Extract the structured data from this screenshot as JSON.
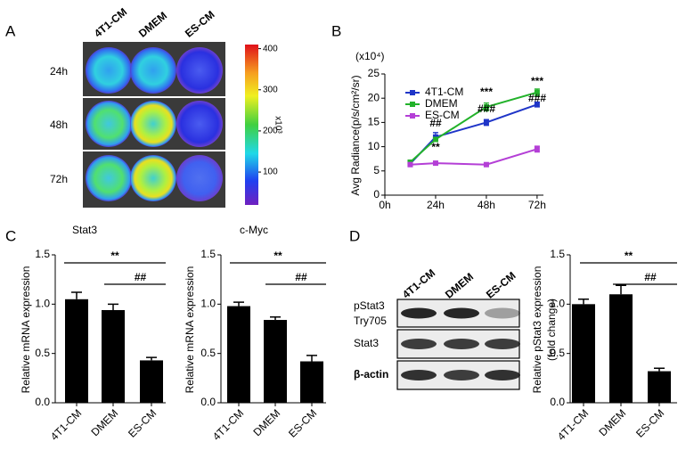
{
  "panel_labels": [
    "A",
    "B",
    "C",
    "D"
  ],
  "imaging": {
    "columns": [
      "4T1-CM",
      "DMEM",
      "ES-CM"
    ],
    "rows": [
      "24h",
      "48h",
      "72h"
    ],
    "colorbar": {
      "label": "x10³",
      "lim": [
        20,
        410
      ],
      "ticks": [
        100,
        200,
        300,
        400
      ]
    }
  },
  "blot": {
    "lanes": [
      "4T1-CM",
      "DMEM",
      "ES-CM"
    ],
    "rows": [
      "pStat3",
      "Try705",
      "Stat3",
      "β-actin"
    ]
  },
  "chart_data": [
    {
      "type": "line",
      "x": [
        12,
        24,
        48,
        72
      ],
      "xlim": [
        0,
        75
      ],
      "xticks": [
        {
          "value": 0,
          "label": "0h"
        },
        {
          "value": 24,
          "label": "24h"
        },
        {
          "value": 48,
          "label": "48h"
        },
        {
          "value": 72,
          "label": "72h"
        }
      ],
      "ylim": [
        0,
        25
      ],
      "yticks": [
        0,
        5,
        10,
        15,
        20,
        25
      ],
      "y_label": "Avg Radiance(p/s/cm²/sr)",
      "y_unit": "(x10⁴)",
      "legend": "upper left",
      "series": [
        {
          "name": "4T1-CM",
          "color": "#1f35c8",
          "values": [
            6.5,
            12,
            15,
            18.7
          ],
          "errors": [
            0.3,
            0.9,
            0.6,
            0.5
          ]
        },
        {
          "name": "DMEM",
          "color": "#22b22a",
          "values": [
            6.8,
            11.5,
            18.2,
            21.2
          ],
          "errors": [
            0.3,
            0.4,
            0.8,
            0.7
          ]
        },
        {
          "name": "ES-CM",
          "color": "#b43fd6",
          "values": [
            6.3,
            6.6,
            6.3,
            9.5
          ],
          "errors": [
            0.3,
            0.2,
            0.2,
            0.6
          ]
        }
      ],
      "annotations": [
        "##",
        "**",
        "***",
        "###",
        "***",
        "###"
      ]
    },
    {
      "type": "bar",
      "title": "Stat3",
      "categories": [
        "4T1-CM",
        "DMEM",
        "ES-CM"
      ],
      "values": [
        1.05,
        0.94,
        0.43
      ],
      "errors": [
        0.07,
        0.06,
        0.03
      ],
      "color": "#000000",
      "ylim": [
        0,
        1.5
      ],
      "yticks": [
        {
          "value": 0,
          "label": "0.0"
        },
        {
          "value": 0.5,
          "label": "0.5"
        },
        {
          "value": 1,
          "label": "1.0"
        },
        {
          "value": 1.5,
          "label": "1.5"
        }
      ],
      "y_label": [
        "Relative mRNA expression"
      ],
      "significance": [
        "**",
        "##"
      ]
    },
    {
      "type": "bar",
      "title": "c-Myc",
      "categories": [
        "4T1-CM",
        "DMEM",
        "ES-CM"
      ],
      "values": [
        0.98,
        0.84,
        0.42
      ],
      "errors": [
        0.04,
        0.03,
        0.06
      ],
      "color": "#000000",
      "ylim": [
        0,
        1.5
      ],
      "yticks": [
        {
          "value": 0,
          "label": "0.0"
        },
        {
          "value": 0.5,
          "label": "0.5"
        },
        {
          "value": 1,
          "label": "1.0"
        },
        {
          "value": 1.5,
          "label": "1.5"
        }
      ],
      "y_label": [
        "Relative mRNA expression"
      ],
      "significance": [
        "**",
        "##"
      ]
    },
    {
      "type": "bar",
      "categories": [
        "4T1-CM",
        "DMEM",
        "ES-CM"
      ],
      "values": [
        1.0,
        1.1,
        0.32
      ],
      "errors": [
        0.05,
        0.09,
        0.03
      ],
      "color": "#000000",
      "ylim": [
        0,
        1.5
      ],
      "yticks": [
        {
          "value": 0,
          "label": "0.0"
        },
        {
          "value": 0.5,
          "label": "0.5"
        },
        {
          "value": 1,
          "label": "1.0"
        },
        {
          "value": 1.5,
          "label": "1.5"
        }
      ],
      "y_label": [
        "Relative pStat3 expression",
        "(fold change)"
      ],
      "significance": [
        "**",
        "##"
      ]
    }
  ]
}
